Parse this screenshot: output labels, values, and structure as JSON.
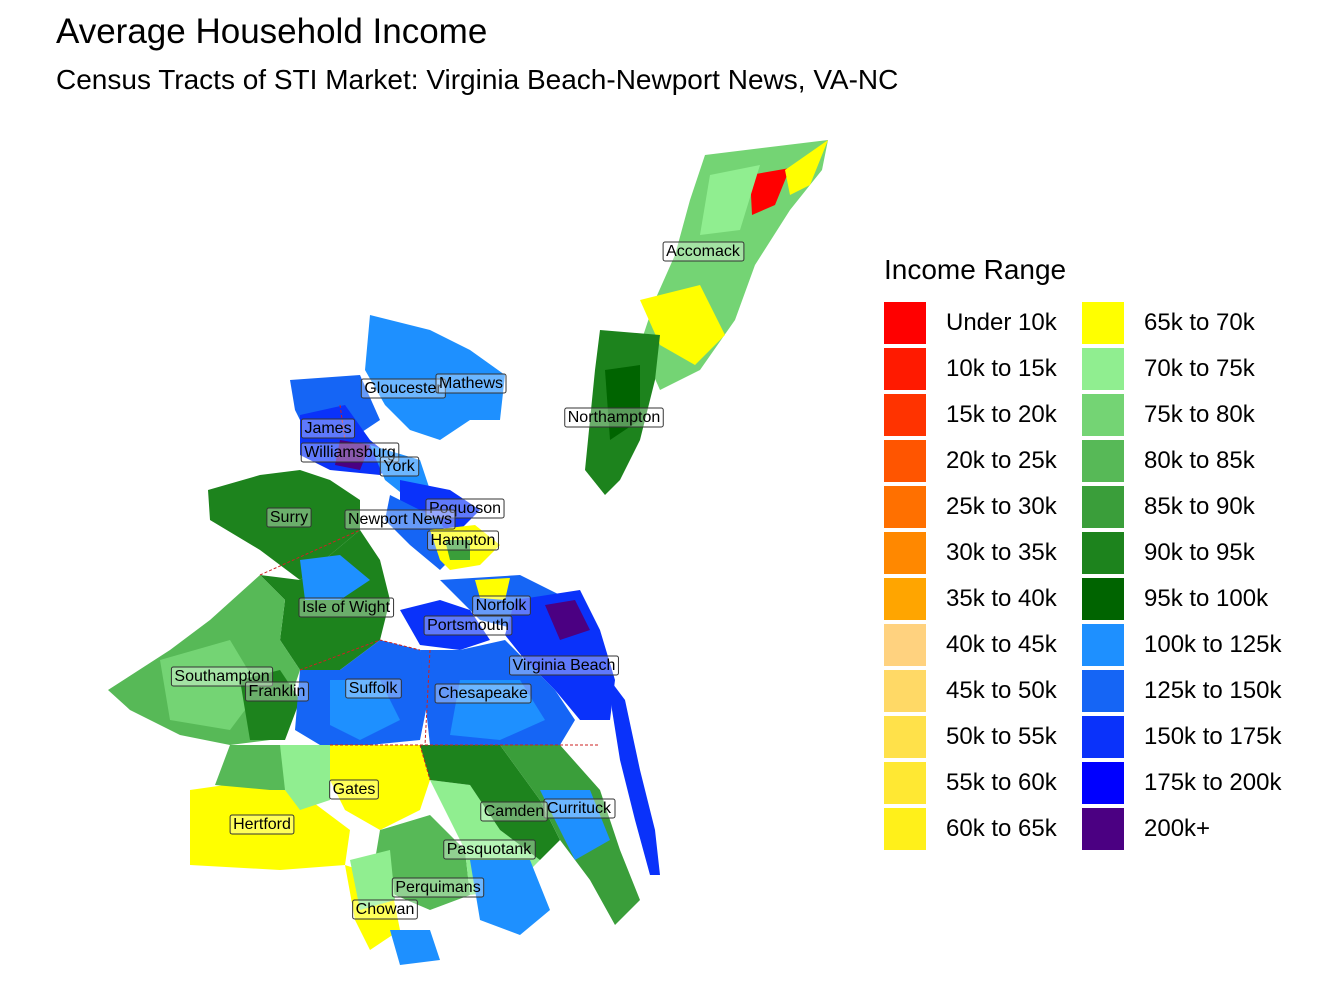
{
  "title": "Average Household Income",
  "subtitle": "Census Tracts of STI Market: Virginia Beach-Newport News, VA-NC",
  "legend": {
    "title": "Income Range",
    "items": [
      {
        "label": "Under 10k",
        "color": "#ff0000"
      },
      {
        "label": "10k to 15k",
        "color": "#ff1a00"
      },
      {
        "label": "15k to 20k",
        "color": "#ff3300"
      },
      {
        "label": "20k to 25k",
        "color": "#ff5500"
      },
      {
        "label": "25k to 30k",
        "color": "#ff7000"
      },
      {
        "label": "30k to 35k",
        "color": "#ff8800"
      },
      {
        "label": "35k to 40k",
        "color": "#ffa500"
      },
      {
        "label": "40k to 45k",
        "color": "#ffd27f"
      },
      {
        "label": "45k to 50k",
        "color": "#ffd966"
      },
      {
        "label": "50k to 55k",
        "color": "#ffe14a"
      },
      {
        "label": "55k to 60k",
        "color": "#ffe833"
      },
      {
        "label": "60k to 65k",
        "color": "#fff01a"
      },
      {
        "label": "65k to 70k",
        "color": "#ffff00"
      },
      {
        "label": "70k to 75k",
        "color": "#90ee90"
      },
      {
        "label": "75k to 80k",
        "color": "#74d474"
      },
      {
        "label": "80k to 85k",
        "color": "#57b957"
      },
      {
        "label": "85k to 90k",
        "color": "#3a9e3a"
      },
      {
        "label": "90k to 95k",
        "color": "#1d831d"
      },
      {
        "label": "95k to 100k",
        "color": "#006400"
      },
      {
        "label": "100k to 125k",
        "color": "#1e90ff"
      },
      {
        "label": "125k to 150k",
        "color": "#1565f5"
      },
      {
        "label": "150k to 175k",
        "color": "#0a32fa"
      },
      {
        "label": "175k to 200k",
        "color": "#0000ff"
      },
      {
        "label": "200k+",
        "color": "#4b0082"
      }
    ]
  },
  "counties": [
    {
      "name": "Accomack"
    },
    {
      "name": "Gloucester"
    },
    {
      "name": "Mathews"
    },
    {
      "name": "Northampton"
    },
    {
      "name": "James"
    },
    {
      "name": "Williamsburg"
    },
    {
      "name": "York"
    },
    {
      "name": "Poquoson"
    },
    {
      "name": "Surry"
    },
    {
      "name": "Newport News"
    },
    {
      "name": "Hampton"
    },
    {
      "name": "Isle of Wight"
    },
    {
      "name": "Norfolk"
    },
    {
      "name": "Portsmouth"
    },
    {
      "name": "Virginia Beach"
    },
    {
      "name": "Southampton"
    },
    {
      "name": "Franklin"
    },
    {
      "name": "Suffolk"
    },
    {
      "name": "Chesapeake"
    },
    {
      "name": "Gates"
    },
    {
      "name": "Currituck"
    },
    {
      "name": "Camden"
    },
    {
      "name": "Hertford"
    },
    {
      "name": "Pasquotank"
    },
    {
      "name": "Perquimans"
    },
    {
      "name": "Chowan"
    }
  ]
}
